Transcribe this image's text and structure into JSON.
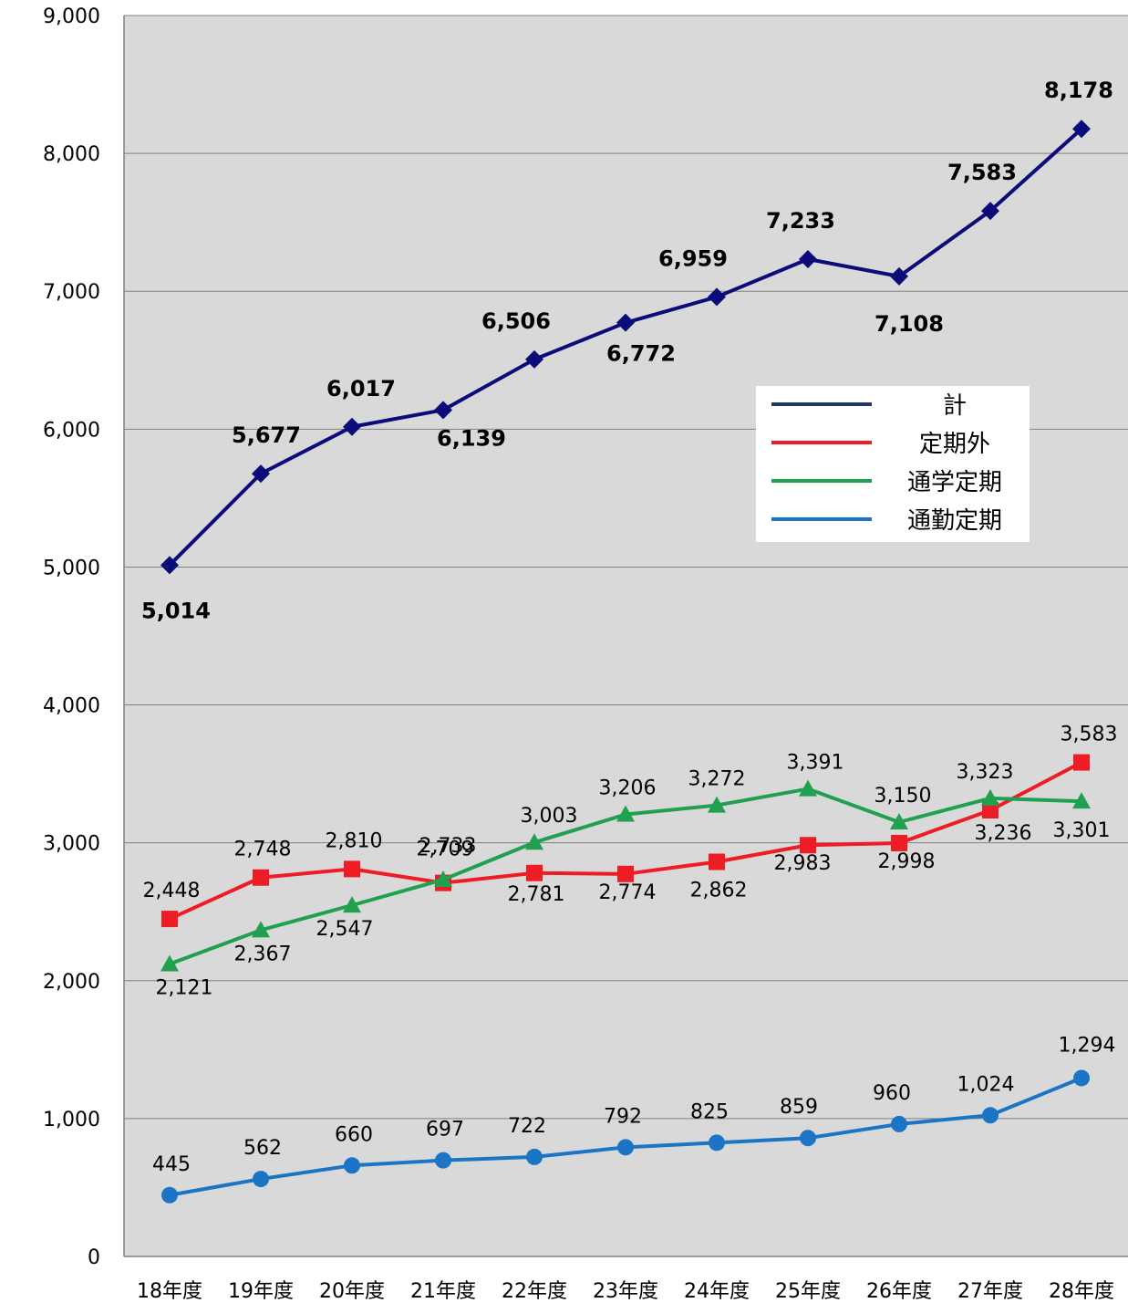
{
  "chart_data": {
    "type": "line",
    "categories": [
      "18年度",
      "19年度",
      "20年度",
      "21年度",
      "22年度",
      "23年度",
      "24年度",
      "25年度",
      "26年度",
      "27年度",
      "28年度"
    ],
    "ylim": [
      0,
      9000
    ],
    "yticks": [
      "0",
      "1,000",
      "2,000",
      "3,000",
      "4,000",
      "5,000",
      "6,000",
      "7,000",
      "8,000",
      "9,000"
    ],
    "grid": true,
    "legend_position": "right",
    "plot_background": "#d9d9d9",
    "series": [
      {
        "name": "計",
        "color": "#0b0b7a",
        "legend_color": "#1f3864",
        "marker": "diamond",
        "values": [
          5014,
          5677,
          6017,
          6139,
          6506,
          6772,
          6959,
          7233,
          7108,
          7583,
          8178
        ],
        "labels": [
          "5,014",
          "5,677",
          "6,017",
          "6,139",
          "6,506",
          "6,772",
          "6,959",
          "7,233",
          "7,108",
          "7,583",
          "8,178"
        ]
      },
      {
        "name": "定期外",
        "color": "#ee1c25",
        "marker": "square",
        "values": [
          2448,
          2748,
          2810,
          2709,
          2781,
          2774,
          2862,
          2983,
          2998,
          3236,
          3583
        ],
        "labels": [
          "2,448",
          "2,748",
          "2,810",
          "2,709",
          "2,781",
          "2,774",
          "2,862",
          "2,983",
          "2,998",
          "3,236",
          "3,583"
        ]
      },
      {
        "name": "通学定期",
        "color": "#21a050",
        "marker": "triangle",
        "values": [
          2121,
          2367,
          2547,
          2733,
          3003,
          3206,
          3272,
          3391,
          3150,
          3323,
          3301
        ],
        "labels": [
          "2,121",
          "2,367",
          "2,547",
          "2,733",
          "3,003",
          "3,206",
          "3,272",
          "3,391",
          "3,150",
          "3,323",
          "3,301"
        ]
      },
      {
        "name": "通勤定期",
        "color": "#1b75c4",
        "marker": "circle",
        "values": [
          445,
          562,
          660,
          697,
          722,
          792,
          825,
          859,
          960,
          1024,
          1294
        ],
        "labels": [
          "445",
          "562",
          "660",
          "697",
          "722",
          "792",
          "825",
          "859",
          "960",
          "1,024",
          "1,294"
        ]
      }
    ]
  }
}
